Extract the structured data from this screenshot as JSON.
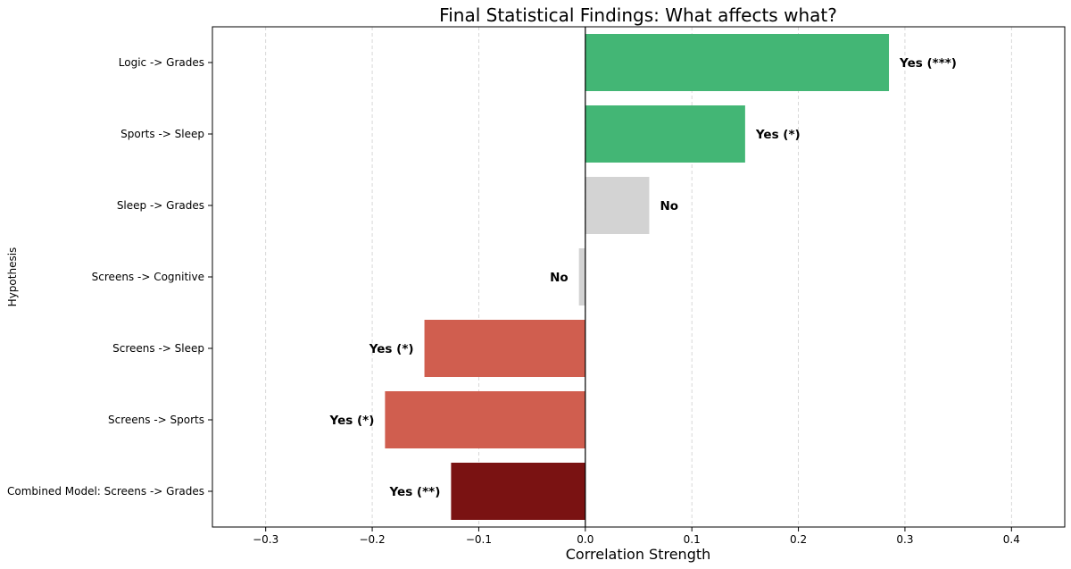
{
  "chart_data": {
    "type": "bar",
    "orientation": "horizontal",
    "title": "Final Statistical Findings: What affects what?",
    "xlabel": "Correlation Strength",
    "ylabel": "Hypothesis",
    "xlim": [
      -0.35,
      0.45
    ],
    "xticks": [
      -0.3,
      -0.2,
      -0.1,
      0.0,
      0.1,
      0.2,
      0.3,
      0.4
    ],
    "xtick_labels": [
      "−0.3",
      "−0.2",
      "−0.1",
      "0.0",
      "0.1",
      "0.2",
      "0.3",
      "0.4"
    ],
    "grid": "x-dashed",
    "categories": [
      "Logic -> Grades",
      "Sports -> Sleep",
      "Sleep -> Grades",
      "Screens -> Cognitive",
      "Screens -> Sleep",
      "Screens -> Sports",
      "Combined Model: Screens -> Grades"
    ],
    "values": [
      0.285,
      0.15,
      0.06,
      -0.006,
      -0.151,
      -0.188,
      -0.126
    ],
    "labels": [
      "Yes (***)",
      "Yes (*)",
      "No",
      "No",
      "Yes (*)",
      "Yes (*)",
      "Yes (**)"
    ],
    "colors": [
      "#43b675",
      "#43b675",
      "#d3d3d3",
      "#d3d3d3",
      "#d05e4f",
      "#d05e4f",
      "#7a1212"
    ]
  }
}
